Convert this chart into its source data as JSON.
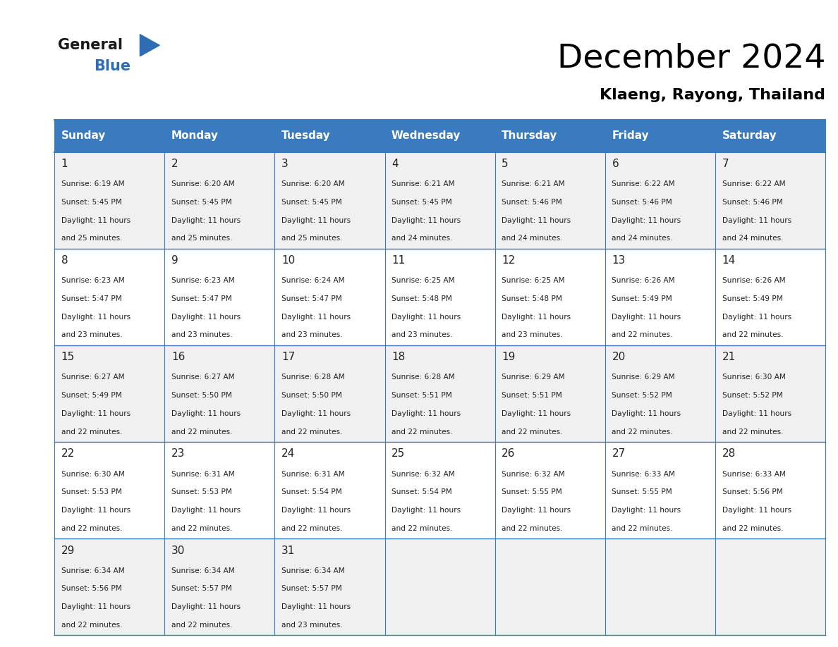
{
  "title": "December 2024",
  "subtitle": "Klaeng, Rayong, Thailand",
  "header_bg_color": "#3a7bbf",
  "header_text_color": "#ffffff",
  "cell_bg_odd": "#f0f0f0",
  "cell_bg_even": "#ffffff",
  "text_color": "#222222",
  "border_color": "#3a7bbf",
  "days_of_week": [
    "Sunday",
    "Monday",
    "Tuesday",
    "Wednesday",
    "Thursday",
    "Friday",
    "Saturday"
  ],
  "calendar_data": [
    [
      {
        "day": 1,
        "sunrise": "6:19 AM",
        "sunset": "5:45 PM",
        "daylight_hours": 11,
        "daylight_minutes": 25
      },
      {
        "day": 2,
        "sunrise": "6:20 AM",
        "sunset": "5:45 PM",
        "daylight_hours": 11,
        "daylight_minutes": 25
      },
      {
        "day": 3,
        "sunrise": "6:20 AM",
        "sunset": "5:45 PM",
        "daylight_hours": 11,
        "daylight_minutes": 25
      },
      {
        "day": 4,
        "sunrise": "6:21 AM",
        "sunset": "5:45 PM",
        "daylight_hours": 11,
        "daylight_minutes": 24
      },
      {
        "day": 5,
        "sunrise": "6:21 AM",
        "sunset": "5:46 PM",
        "daylight_hours": 11,
        "daylight_minutes": 24
      },
      {
        "day": 6,
        "sunrise": "6:22 AM",
        "sunset": "5:46 PM",
        "daylight_hours": 11,
        "daylight_minutes": 24
      },
      {
        "day": 7,
        "sunrise": "6:22 AM",
        "sunset": "5:46 PM",
        "daylight_hours": 11,
        "daylight_minutes": 24
      }
    ],
    [
      {
        "day": 8,
        "sunrise": "6:23 AM",
        "sunset": "5:47 PM",
        "daylight_hours": 11,
        "daylight_minutes": 23
      },
      {
        "day": 9,
        "sunrise": "6:23 AM",
        "sunset": "5:47 PM",
        "daylight_hours": 11,
        "daylight_minutes": 23
      },
      {
        "day": 10,
        "sunrise": "6:24 AM",
        "sunset": "5:47 PM",
        "daylight_hours": 11,
        "daylight_minutes": 23
      },
      {
        "day": 11,
        "sunrise": "6:25 AM",
        "sunset": "5:48 PM",
        "daylight_hours": 11,
        "daylight_minutes": 23
      },
      {
        "day": 12,
        "sunrise": "6:25 AM",
        "sunset": "5:48 PM",
        "daylight_hours": 11,
        "daylight_minutes": 23
      },
      {
        "day": 13,
        "sunrise": "6:26 AM",
        "sunset": "5:49 PM",
        "daylight_hours": 11,
        "daylight_minutes": 22
      },
      {
        "day": 14,
        "sunrise": "6:26 AM",
        "sunset": "5:49 PM",
        "daylight_hours": 11,
        "daylight_minutes": 22
      }
    ],
    [
      {
        "day": 15,
        "sunrise": "6:27 AM",
        "sunset": "5:49 PM",
        "daylight_hours": 11,
        "daylight_minutes": 22
      },
      {
        "day": 16,
        "sunrise": "6:27 AM",
        "sunset": "5:50 PM",
        "daylight_hours": 11,
        "daylight_minutes": 22
      },
      {
        "day": 17,
        "sunrise": "6:28 AM",
        "sunset": "5:50 PM",
        "daylight_hours": 11,
        "daylight_minutes": 22
      },
      {
        "day": 18,
        "sunrise": "6:28 AM",
        "sunset": "5:51 PM",
        "daylight_hours": 11,
        "daylight_minutes": 22
      },
      {
        "day": 19,
        "sunrise": "6:29 AM",
        "sunset": "5:51 PM",
        "daylight_hours": 11,
        "daylight_minutes": 22
      },
      {
        "day": 20,
        "sunrise": "6:29 AM",
        "sunset": "5:52 PM",
        "daylight_hours": 11,
        "daylight_minutes": 22
      },
      {
        "day": 21,
        "sunrise": "6:30 AM",
        "sunset": "5:52 PM",
        "daylight_hours": 11,
        "daylight_minutes": 22
      }
    ],
    [
      {
        "day": 22,
        "sunrise": "6:30 AM",
        "sunset": "5:53 PM",
        "daylight_hours": 11,
        "daylight_minutes": 22
      },
      {
        "day": 23,
        "sunrise": "6:31 AM",
        "sunset": "5:53 PM",
        "daylight_hours": 11,
        "daylight_minutes": 22
      },
      {
        "day": 24,
        "sunrise": "6:31 AM",
        "sunset": "5:54 PM",
        "daylight_hours": 11,
        "daylight_minutes": 22
      },
      {
        "day": 25,
        "sunrise": "6:32 AM",
        "sunset": "5:54 PM",
        "daylight_hours": 11,
        "daylight_minutes": 22
      },
      {
        "day": 26,
        "sunrise": "6:32 AM",
        "sunset": "5:55 PM",
        "daylight_hours": 11,
        "daylight_minutes": 22
      },
      {
        "day": 27,
        "sunrise": "6:33 AM",
        "sunset": "5:55 PM",
        "daylight_hours": 11,
        "daylight_minutes": 22
      },
      {
        "day": 28,
        "sunrise": "6:33 AM",
        "sunset": "5:56 PM",
        "daylight_hours": 11,
        "daylight_minutes": 22
      }
    ],
    [
      {
        "day": 29,
        "sunrise": "6:34 AM",
        "sunset": "5:56 PM",
        "daylight_hours": 11,
        "daylight_minutes": 22
      },
      {
        "day": 30,
        "sunrise": "6:34 AM",
        "sunset": "5:57 PM",
        "daylight_hours": 11,
        "daylight_minutes": 22
      },
      {
        "day": 31,
        "sunrise": "6:34 AM",
        "sunset": "5:57 PM",
        "daylight_hours": 11,
        "daylight_minutes": 23
      },
      null,
      null,
      null,
      null
    ]
  ],
  "logo_text_general": "General",
  "logo_text_blue": "Blue",
  "logo_triangle_color": "#2e6db4"
}
